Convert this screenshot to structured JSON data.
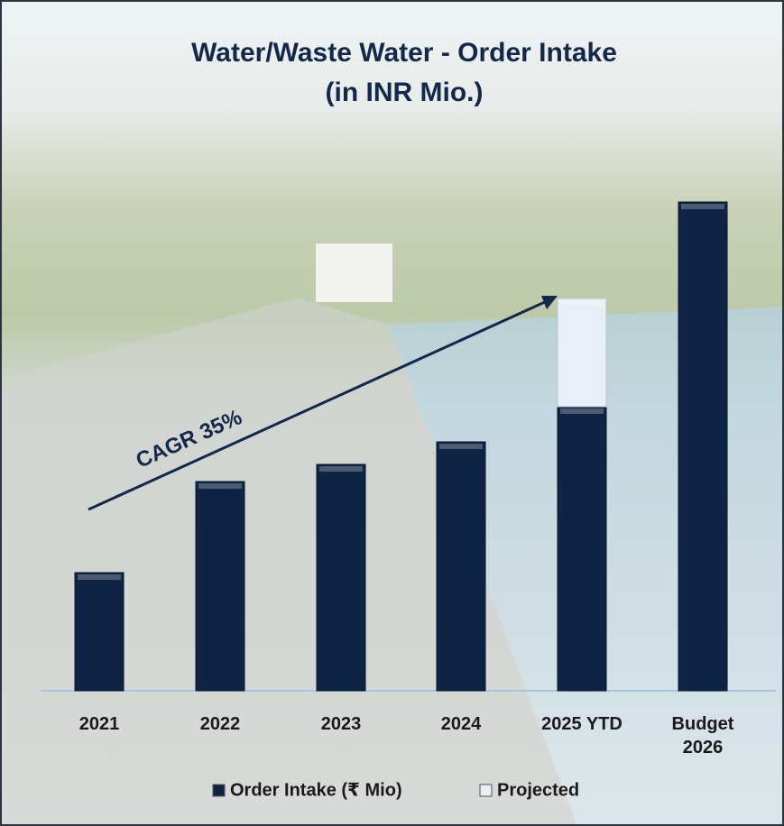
{
  "chart_data": {
    "type": "bar",
    "stacked": true,
    "title": "Water/Waste Water - Order Intake",
    "subtitle": "(in INR Mio.)",
    "categories": [
      "2021",
      "2022",
      "2023",
      "2024",
      "2025 YTD",
      "Budget 2026"
    ],
    "series": [
      {
        "name": "Order Intake (₹ Mio)",
        "color": "#0f2444",
        "values": [
          131,
          232,
          251,
          276,
          315,
          542
        ]
      },
      {
        "name": "Projected",
        "color": "#e9eff6",
        "values": [
          null,
          null,
          null,
          null,
          120,
          null
        ]
      }
    ],
    "ylim": [
      0,
      600
    ],
    "annotation": "CAGR 35%"
  }
}
